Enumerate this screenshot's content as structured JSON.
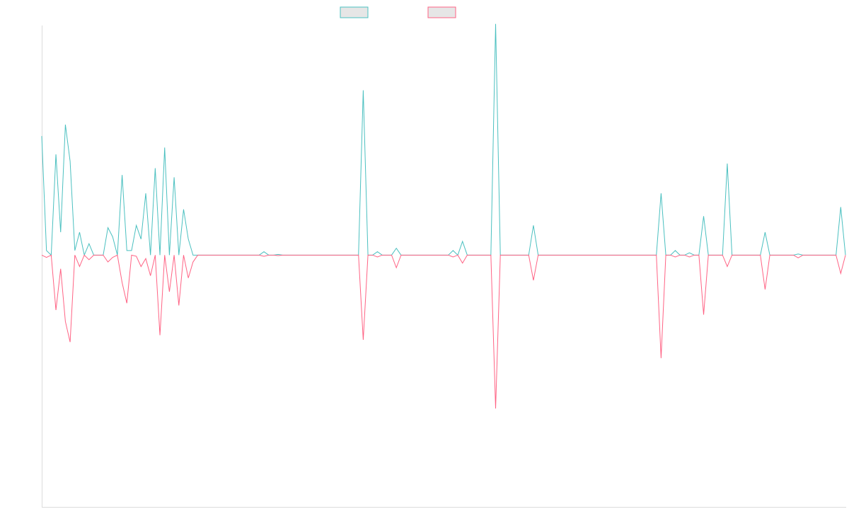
{
  "chart_data": {
    "type": "line",
    "title": "",
    "xlabel": "",
    "ylabel": "",
    "grid": false,
    "legend": "top-center",
    "ylim": [
      -110,
      100
    ],
    "series": [
      {
        "color": "#4bc0c0",
        "legend_fill": "#e6e6e6",
        "values": [
          52,
          2,
          0,
          44,
          10,
          57,
          41,
          2,
          10,
          0,
          5,
          0,
          0,
          0,
          12,
          8,
          0,
          35,
          2,
          2,
          13,
          7,
          27,
          0,
          38,
          0,
          47,
          0,
          34,
          0,
          20,
          7,
          0,
          0,
          0,
          0,
          0,
          0,
          0,
          0,
          0,
          0,
          0,
          0,
          0,
          0,
          0,
          1.5,
          0,
          0,
          0.3,
          0,
          0,
          0,
          0,
          0,
          0,
          0,
          0,
          0,
          0,
          0,
          0,
          0,
          0,
          0,
          0,
          0,
          72,
          0,
          0,
          1.5,
          0,
          0,
          0,
          3,
          0,
          0,
          0,
          0,
          0,
          0,
          0,
          0,
          0,
          0,
          0,
          2,
          0,
          6,
          0,
          0,
          0,
          0,
          0,
          0,
          101,
          0,
          0,
          0,
          0,
          0,
          0,
          0,
          13,
          0,
          0,
          0,
          0,
          0,
          0,
          0,
          0,
          0,
          0,
          0,
          0,
          0,
          0,
          0,
          0,
          0,
          0,
          0,
          0,
          0,
          0,
          0,
          0,
          0,
          0,
          27,
          0,
          0,
          2,
          0,
          0,
          1,
          0,
          0,
          17,
          0,
          0,
          0,
          0,
          40,
          0,
          0,
          0,
          0,
          0,
          0,
          0,
          10,
          0,
          0,
          0,
          0,
          0,
          0,
          0.5,
          0,
          0,
          0,
          0,
          0,
          0,
          0,
          0,
          21,
          0
        ]
      },
      {
        "color": "#ff6384",
        "legend_fill": "#e6e6e6",
        "values": [
          0,
          -1,
          0,
          -24,
          -6,
          -29,
          -38,
          0,
          -5,
          0,
          -2,
          0,
          0,
          0,
          -3,
          -1,
          0,
          -12,
          -21,
          0,
          -0.5,
          -5,
          -1.5,
          -9,
          0,
          -35,
          0,
          -16,
          0,
          -22,
          0,
          -10,
          -3,
          0,
          0,
          0,
          0,
          0,
          0,
          0,
          0,
          0,
          0,
          0,
          0,
          0,
          0,
          -0.5,
          0,
          0,
          -0.2,
          0,
          0,
          0,
          0,
          0,
          0,
          0,
          0,
          0,
          0,
          0,
          0,
          0,
          0,
          0,
          0,
          0,
          -37,
          0,
          0,
          -0.8,
          0,
          0,
          0,
          -5.5,
          0,
          0,
          0,
          0,
          0,
          0,
          0,
          0,
          0,
          0,
          0,
          -0.8,
          0,
          -3.5,
          0,
          0,
          0,
          0,
          0,
          0,
          -67,
          0,
          0,
          0,
          0,
          0,
          0,
          0,
          -11,
          0,
          0,
          0,
          0,
          0,
          0,
          0,
          0,
          0,
          0,
          0,
          0,
          0,
          0,
          0,
          0,
          0,
          0,
          0,
          0,
          0,
          0,
          0,
          0,
          0,
          0,
          -45,
          0,
          0,
          -0.8,
          0,
          0,
          -0.8,
          0,
          0,
          -26,
          0,
          0,
          0,
          0,
          -5,
          0,
          0,
          0,
          0,
          0,
          0,
          0,
          -15,
          0,
          0,
          0,
          0,
          0,
          0,
          -1.2,
          0,
          0,
          0,
          0,
          0,
          0,
          0,
          0,
          -8,
          0
        ]
      }
    ]
  }
}
